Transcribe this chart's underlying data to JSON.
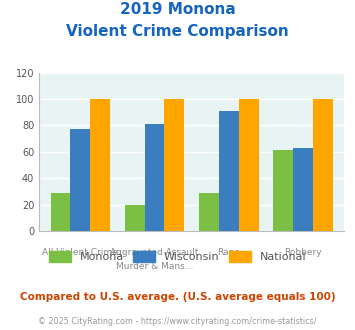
{
  "title_line1": "2019 Monona",
  "title_line2": "Violent Crime Comparison",
  "cat_labels_top": [
    "",
    "Aggravated Assault",
    "",
    ""
  ],
  "cat_labels_bot": [
    "All Violent Crime",
    "Murder & Mans...",
    "Rape",
    "Robbery"
  ],
  "monona": [
    29,
    20,
    29,
    61
  ],
  "wisconsin": [
    77,
    81,
    91,
    63
  ],
  "national": [
    100,
    100,
    100,
    100
  ],
  "color_monona": "#7BBF44",
  "color_wisconsin": "#3A7EBF",
  "color_national": "#FFA500",
  "ylim": [
    0,
    120
  ],
  "yticks": [
    0,
    20,
    40,
    60,
    80,
    100,
    120
  ],
  "bg_color": "#E8F4F4",
  "title_color": "#1565C0",
  "footer_text": "Compared to U.S. average. (U.S. average equals 100)",
  "footer_color": "#CC4400",
  "copyright_text": "© 2025 CityRating.com - https://www.cityrating.com/crime-statistics/",
  "copyright_color": "#999999",
  "legend_labels": [
    "Monona",
    "Wisconsin",
    "National"
  ],
  "grid_color": "#FFFFFF",
  "legend_text_color": "#555555"
}
